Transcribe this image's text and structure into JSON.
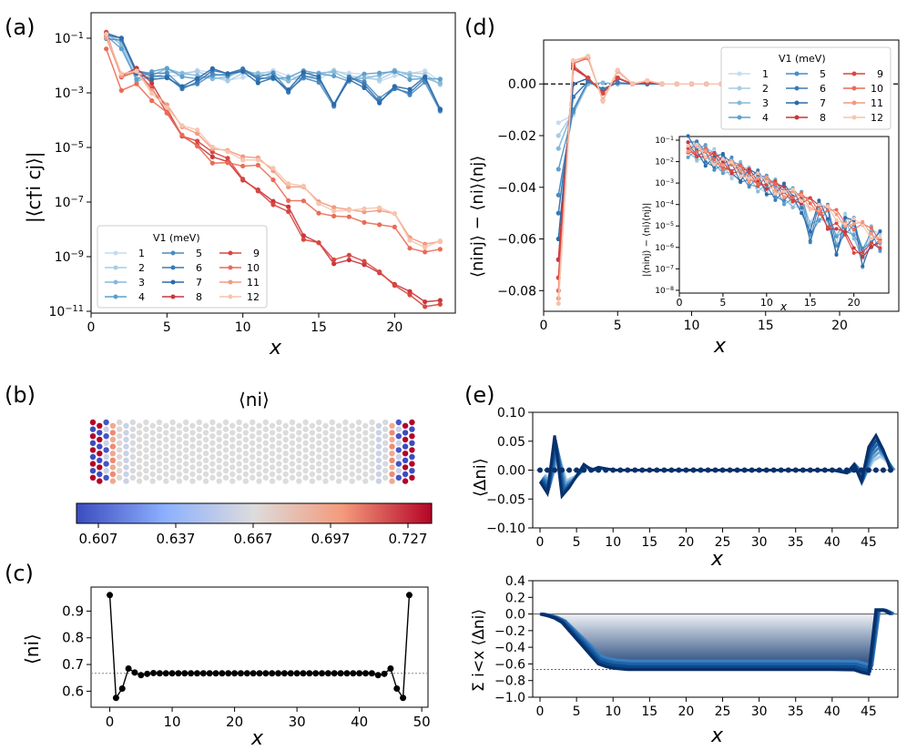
{
  "panels": {
    "a": {
      "label": "(a)",
      "xlabel": "x",
      "ylabel": "|⟨c†i cj⟩|",
      "xticks": [
        "0",
        "5",
        "10",
        "15",
        "20"
      ],
      "yticks": [
        "10^-1",
        "10^-3",
        "10^-5",
        "10^-7",
        "10^-9",
        "10^-11"
      ],
      "legend_title": "V1 (meV)"
    },
    "b": {
      "label": "(b)",
      "title": "⟨ni⟩",
      "cbar_ticks": [
        "0.607",
        "0.637",
        "0.667",
        "0.697",
        "0.727"
      ]
    },
    "c": {
      "label": "(c)",
      "xlabel": "x",
      "ylabel": "⟨ni⟩",
      "xticks": [
        "0",
        "10",
        "20",
        "30",
        "40",
        "50"
      ],
      "yticks": [
        "0.6",
        "0.7",
        "0.8",
        "0.9"
      ]
    },
    "d": {
      "label": "(d)",
      "xlabel": "x",
      "ylabel": "⟨ninj⟩ − ⟨ni⟩⟨nj⟩",
      "xticks": [
        "0",
        "5",
        "10",
        "15",
        "20"
      ],
      "yticks": [
        "0.00",
        "-0.02",
        "-0.04",
        "-0.06",
        "-0.08"
      ],
      "legend_title": "V1 (meV)",
      "inset_xlabel": "x",
      "inset_ylabel": "|⟨ninj⟩ − ⟨ni⟩⟨nj⟩|",
      "inset_xticks": [
        "0",
        "5",
        "10",
        "15",
        "20"
      ],
      "inset_yticks": [
        "10^-1",
        "10^-2",
        "10^-3",
        "10^-4",
        "10^-5",
        "10^-6",
        "10^-7",
        "10^-8"
      ]
    },
    "e": {
      "label": "(e)",
      "xlabel": "x",
      "ylabel_top": "⟨Δni⟩",
      "ylabel_bottom": "Σ i<x ⟨Δni⟩",
      "xticks": [
        "0",
        "5",
        "10",
        "15",
        "20",
        "25",
        "30",
        "35",
        "40",
        "45"
      ],
      "yticks_top": [
        "0.10",
        "0.05",
        "0.00",
        "-0.05",
        "-0.10"
      ],
      "yticks_bottom": [
        "0.4",
        "0.2",
        "0.0",
        "-0.2",
        "-0.4",
        "-0.6",
        "-0.8",
        "-1.0"
      ]
    }
  },
  "legend_entries": [
    "1",
    "2",
    "3",
    "4",
    "5",
    "6",
    "7",
    "8",
    "9",
    "10",
    "11",
    "12"
  ],
  "colors": {
    "blue_series": [
      "#b7d4ea",
      "#9ac8e0",
      "#73b3d8",
      "#4f9bcb",
      "#3a87c1",
      "#2a72b2",
      "#1a5ea8",
      "#c4353a"
    ],
    "red_series": [
      "#cb3d3f",
      "#e36a5a",
      "#f09178",
      "#f6b29a",
      "#f8cbb7"
    ],
    "dot": "#000000"
  },
  "chart_data": [
    {
      "type": "line",
      "panel": "a",
      "scale": "log",
      "x": [
        1,
        2,
        3,
        4,
        5,
        6,
        7,
        8,
        9,
        10,
        11,
        12,
        13,
        14,
        15,
        16,
        17,
        18,
        19,
        20,
        21,
        22,
        23
      ],
      "xlim": [
        0,
        24
      ],
      "ylim": [
        1e-11,
        1
      ],
      "series": [
        {
          "name": "1",
          "values": [
            0.12,
            0.06,
            0.004,
            0.005,
            0.006,
            0.004,
            0.005,
            0.005,
            0.004,
            0.005,
            0.004,
            0.005,
            0.004,
            0.005,
            0.004,
            0.005,
            0.004,
            0.005,
            0.004,
            0.005,
            0.004,
            0.005,
            0.003
          ]
        },
        {
          "name": "6",
          "values": [
            0.12,
            0.08,
            0.005,
            0.004,
            0.005,
            0.002,
            0.003,
            0.006,
            0.004,
            0.006,
            0.003,
            0.005,
            0.0015,
            0.005,
            0.003,
            0.0003,
            0.003,
            0.002,
            0.0006,
            0.002,
            0.0012,
            0.003,
            0.0002
          ]
        },
        {
          "name": "8",
          "values": [
            0.12,
            0.003,
            0.006,
            0.002,
            0.0003,
            4e-05,
            2e-05,
            6e-06,
            3e-06,
            5e-07,
            2e-07,
            8e-08,
            6e-08,
            7e-09,
            5e-09,
            9e-10,
            1e-09,
            5e-10,
            2e-10,
            7e-11,
            4e-11,
            2e-11,
            3e-11
          ]
        },
        {
          "name": "12",
          "values": [
            0.14,
            0.004,
            0.005,
            0.001,
            0.0004,
            8e-05,
            4e-05,
            8e-06,
            6e-06,
            4e-06,
            5e-06,
            2e-06,
            4e-07,
            3e-07,
            8e-08,
            6e-08,
            7e-08,
            6e-08,
            5e-08,
            3e-08,
            4e-09,
            3e-09,
            5e-09
          ]
        }
      ],
      "legend": "lower-left"
    },
    {
      "type": "line",
      "panel": "c",
      "x": [
        0,
        1,
        2,
        3,
        4,
        5,
        6,
        7,
        8,
        9,
        10,
        11,
        12,
        13,
        14,
        15,
        16,
        17,
        18,
        19,
        20,
        21,
        22,
        23,
        24,
        25,
        26,
        27,
        28,
        29,
        30,
        31,
        32,
        33,
        34,
        35,
        36,
        37,
        38,
        39,
        40,
        41,
        42,
        43,
        44,
        45,
        46,
        47,
        48
      ],
      "values": [
        0.96,
        0.575,
        0.61,
        0.685,
        0.67,
        0.66,
        0.665,
        0.668,
        0.667,
        0.667,
        0.667,
        0.667,
        0.667,
        0.667,
        0.667,
        0.667,
        0.667,
        0.667,
        0.667,
        0.667,
        0.667,
        0.667,
        0.667,
        0.667,
        0.667,
        0.667,
        0.667,
        0.667,
        0.667,
        0.667,
        0.667,
        0.667,
        0.667,
        0.667,
        0.667,
        0.667,
        0.667,
        0.667,
        0.667,
        0.667,
        0.667,
        0.667,
        0.667,
        0.66,
        0.665,
        0.685,
        0.61,
        0.575,
        0.96
      ],
      "ref_line": 0.667,
      "xlim": [
        -3,
        51
      ],
      "ylim": [
        0.54,
        0.99
      ]
    },
    {
      "type": "line",
      "panel": "d",
      "x": [
        1,
        2,
        3,
        4,
        5,
        6,
        7,
        8,
        9,
        10,
        11,
        12,
        13,
        14,
        15,
        16,
        17,
        18,
        19,
        20,
        21,
        22,
        23
      ],
      "xlim": [
        0,
        24
      ],
      "ylim": [
        -0.088,
        0.017
      ],
      "series": [
        {
          "name": "1",
          "values": [
            -0.015,
            -0.012,
            0.0,
            0.0005,
            0.0,
            0.0,
            0.0,
            0.0,
            0.0,
            0.0,
            0.0,
            0.0,
            0.0,
            0.0,
            0.0,
            0.0,
            0.0,
            0.0,
            0.0,
            0.0,
            0.0,
            0.0,
            0.0
          ]
        },
        {
          "name": "4",
          "values": [
            -0.033,
            -0.011,
            0.001,
            -0.002,
            0.0005,
            0.0,
            0.0,
            0.0,
            0.0,
            0.0,
            0.0,
            0.0,
            0.0,
            0.0,
            0.0,
            0.0,
            0.0,
            0.0,
            0.0,
            0.0,
            0.0,
            0.0,
            0.0
          ]
        },
        {
          "name": "8",
          "values": [
            -0.068,
            0.006,
            0.002,
            -0.003,
            0.002,
            0.0,
            0.0005,
            0.0,
            0.0,
            0.0,
            0.0,
            0.0,
            0.0,
            0.0,
            0.0,
            0.0,
            0.0,
            0.0,
            0.0,
            0.0,
            0.0,
            0.0,
            0.0
          ]
        },
        {
          "name": "12",
          "values": [
            -0.085,
            0.009,
            0.008,
            -0.005,
            0.004,
            0.0,
            0.001,
            0.0,
            0.0,
            0.0,
            0.0,
            0.0,
            0.0,
            0.0,
            0.0,
            0.0,
            0.0,
            0.0,
            0.0,
            0.0,
            0.0,
            0.0,
            0.0
          ]
        }
      ],
      "ref_line": 0.0,
      "legend": "top-right"
    },
    {
      "type": "line",
      "panel": "e-top",
      "xlim": [
        -1,
        49
      ],
      "ylim": [
        -0.1,
        0.1
      ],
      "x": [
        0,
        1,
        2,
        3,
        4,
        5,
        6,
        7,
        8,
        10,
        15,
        20,
        25,
        30,
        35,
        40,
        42,
        43,
        44,
        45,
        46,
        47,
        48
      ],
      "values": [
        -0.02,
        -0.04,
        0.06,
        -0.045,
        -0.03,
        -0.01,
        0.01,
        0.0,
        0.005,
        0.0,
        0.0,
        0.0,
        0.0,
        0.0,
        0.0,
        0.0,
        -0.005,
        0.01,
        -0.02,
        0.04,
        0.06,
        0.035,
        0.0
      ],
      "ref_line": 0.0
    },
    {
      "type": "area",
      "panel": "e-bottom",
      "xlim": [
        -1,
        49
      ],
      "ylim": [
        -1.0,
        0.4
      ],
      "x": [
        0,
        1,
        2,
        3,
        4,
        5,
        6,
        7,
        8,
        9,
        10,
        12,
        15,
        20,
        25,
        30,
        35,
        40,
        43,
        44,
        45,
        46,
        47,
        48
      ],
      "values": [
        0.0,
        -0.02,
        -0.05,
        -0.1,
        -0.2,
        -0.3,
        -0.4,
        -0.5,
        -0.6,
        -0.63,
        -0.65,
        -0.667,
        -0.667,
        -0.667,
        -0.667,
        -0.667,
        -0.667,
        -0.667,
        -0.67,
        -0.7,
        -0.72,
        0.05,
        0.05,
        0.0
      ],
      "ref_line": -0.667
    }
  ]
}
